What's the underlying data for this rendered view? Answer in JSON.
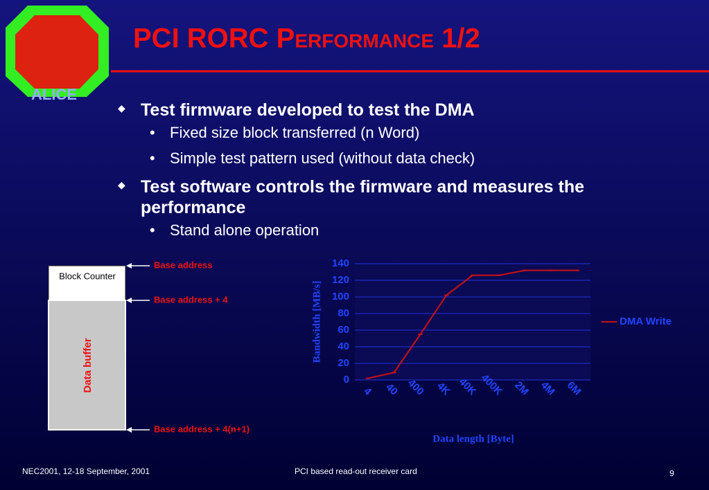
{
  "logo": {
    "text": "ALICE"
  },
  "header": {
    "title": "PCI RORC Performance 1/2"
  },
  "bullets": [
    {
      "text": "Test firmware developed to test the DMA",
      "sub": [
        "Fixed size block transferred (n Word)",
        "Simple test pattern used (without data check)"
      ]
    },
    {
      "text": "Test software controls the firmware and measures the performance",
      "sub": [
        "Stand alone operation"
      ]
    }
  ],
  "diagram": {
    "block": "Block Counter",
    "buffer": "Data buffer",
    "labels": [
      "Base address",
      "Base address + 4",
      "Base address + 4(n+1)"
    ]
  },
  "chart_data": {
    "type": "line",
    "ylabel": "Bandwidth [MB/s]",
    "xlabel": "Data length [Byte]",
    "categories": [
      "4",
      "40",
      "400",
      "4K",
      "40K",
      "400K",
      "2M",
      "4M",
      "6M"
    ],
    "series": [
      {
        "name": "DMA Write",
        "color": "#cc1111",
        "values": [
          2,
          9,
          55,
          102,
          126,
          126,
          132,
          132,
          132
        ]
      }
    ],
    "ylim": [
      0,
      140
    ],
    "yticks": [
      0,
      20,
      40,
      60,
      80,
      100,
      120,
      140
    ],
    "grid": true,
    "legend": "right"
  },
  "footer": {
    "left": "NEC2001, 12-18 September, 2001",
    "center": "PCI based read-out receiver card",
    "page": "9"
  }
}
